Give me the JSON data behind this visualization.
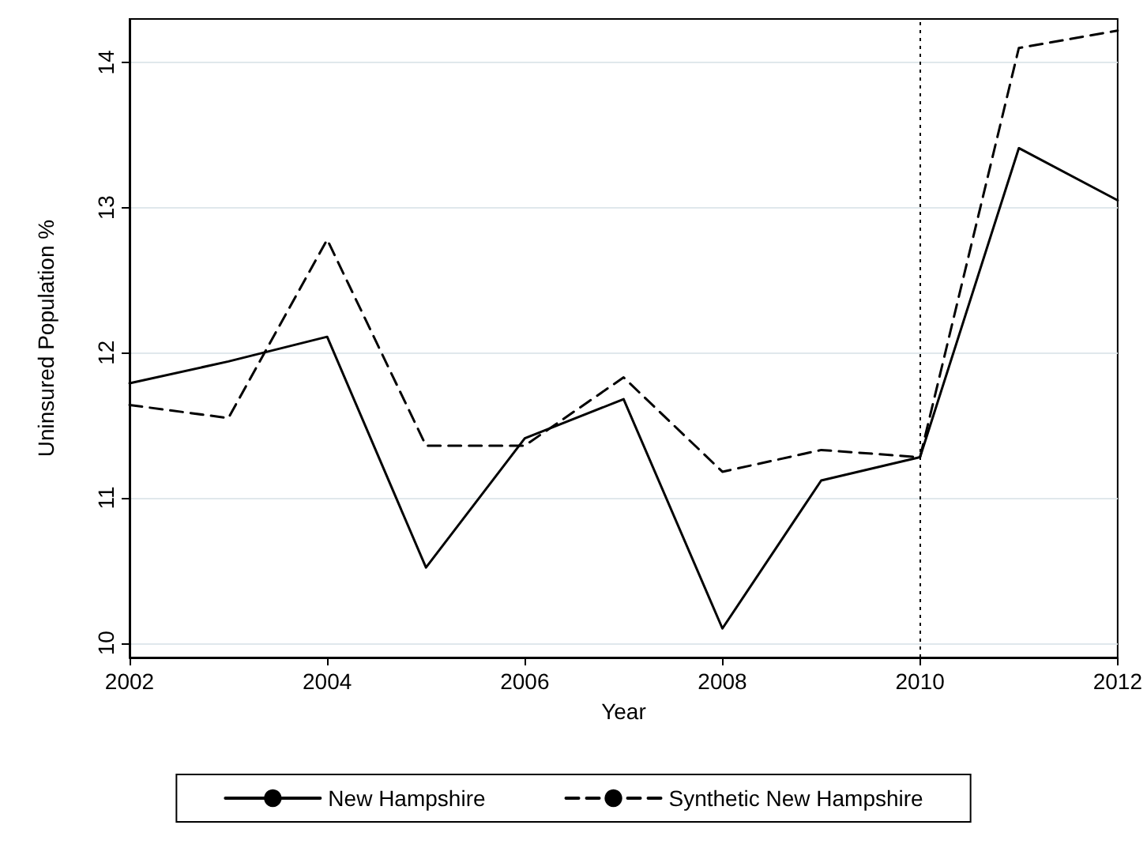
{
  "chart_data": {
    "type": "line",
    "xlabel": "Year",
    "ylabel": "Uninsured Population %",
    "x": [
      2002,
      2003,
      2004,
      2005,
      2006,
      2007,
      2008,
      2009,
      2010,
      2011,
      2012
    ],
    "series": [
      {
        "name": "New Hampshire",
        "color": "#000000",
        "line_style": "solid",
        "values": [
          11.79,
          11.94,
          12.11,
          10.52,
          11.41,
          11.68,
          10.1,
          11.12,
          11.28,
          13.41,
          13.05
        ]
      },
      {
        "name": "Synthetic New Hampshire",
        "color": "#000000",
        "line_style": "dashed",
        "values": [
          11.64,
          11.55,
          12.78,
          11.36,
          11.36,
          11.83,
          11.18,
          11.33,
          11.28,
          14.1,
          14.22
        ]
      }
    ],
    "xlim": [
      2002,
      2012
    ],
    "xticks": [
      2002,
      2004,
      2006,
      2008,
      2010,
      2012
    ],
    "ylim": [
      9.9,
      14.3
    ],
    "yticks": [
      10,
      11,
      12,
      13,
      14
    ],
    "grid": "y",
    "legend": "bottom",
    "marker": "none",
    "ref_lines": [
      {
        "axis": "x",
        "value": 2010,
        "color": "#000000",
        "line_style": "dotted"
      }
    ]
  }
}
